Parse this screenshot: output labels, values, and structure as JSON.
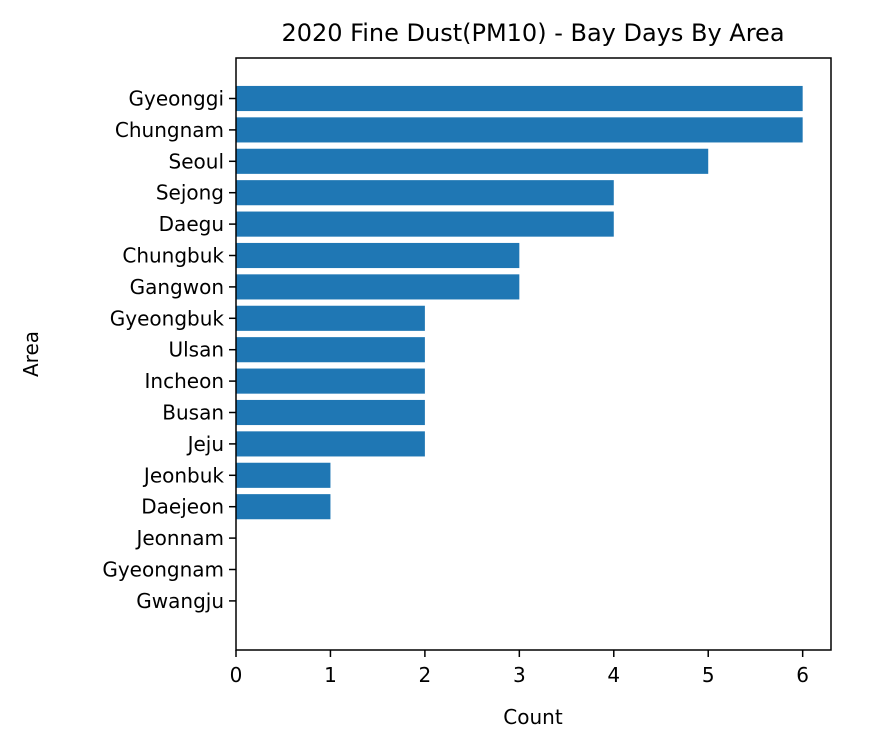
{
  "chart_data": {
    "type": "bar",
    "orientation": "horizontal",
    "title": "2020 Fine Dust(PM10) - Bay Days By Area",
    "xlabel": "Count",
    "ylabel": "Area",
    "categories": [
      "Gyeonggi",
      "Chungnam",
      "Seoul",
      "Sejong",
      "Daegu",
      "Chungbuk",
      "Gangwon",
      "Gyeongbuk",
      "Ulsan",
      "Incheon",
      "Busan",
      "Jeju",
      "Jeonbuk",
      "Daejeon",
      "Jeonnam",
      "Gyeongnam",
      "Gwangju"
    ],
    "values": [
      6,
      6,
      5,
      4,
      4,
      3,
      3,
      2,
      2,
      2,
      2,
      2,
      1,
      1,
      0,
      0,
      0
    ],
    "xlim": [
      0,
      6.3
    ],
    "xticks": [
      "0",
      "1",
      "2",
      "3",
      "4",
      "5",
      "6"
    ],
    "grid": false,
    "legend": "none",
    "bar_color": "#1f77b4"
  }
}
